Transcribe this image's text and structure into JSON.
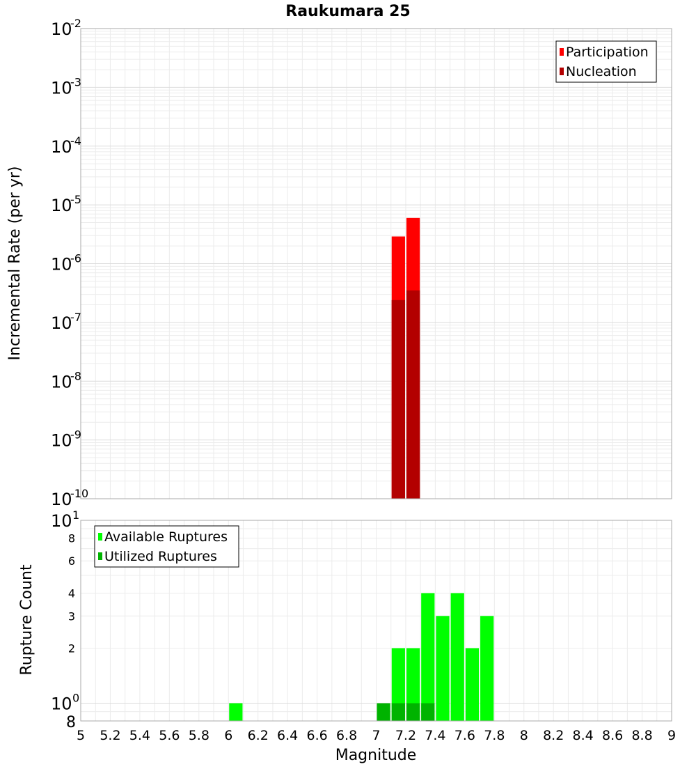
{
  "chart_data": [
    {
      "type": "bar",
      "title": "Raukumara 25",
      "xlabel": "",
      "ylabel": "Incremental Rate (per yr)",
      "xlim": [
        5,
        9
      ],
      "ylim": [
        1e-10,
        0.01
      ],
      "y_scale": "log",
      "bin_width": 0.1,
      "grid": true,
      "legend_position": "top-right",
      "y_tick_exponents": [
        "-2",
        "-3",
        "-4",
        "-5",
        "-6",
        "-7",
        "-8",
        "-9",
        "-10"
      ],
      "series": [
        {
          "name": "Participation",
          "color": "#ff0000",
          "points": [
            {
              "x": 7.15,
              "y": 2.9e-06
            },
            {
              "x": 7.25,
              "y": 6e-06
            }
          ]
        },
        {
          "name": "Nucleation",
          "color": "#b30000",
          "points": [
            {
              "x": 7.15,
              "y": 2.4e-07
            },
            {
              "x": 7.25,
              "y": 3.5e-07
            }
          ]
        }
      ]
    },
    {
      "type": "bar",
      "title": "",
      "xlabel": "Magnitude",
      "ylabel": "Rupture Count",
      "xlim": [
        5,
        9
      ],
      "ylim": [
        0.8,
        10
      ],
      "y_scale": "log",
      "bin_width": 0.1,
      "grid": true,
      "legend_position": "top-left",
      "x_tick_labels": [
        "5",
        "5.2",
        "5.4",
        "5.6",
        "5.8",
        "6",
        "6.2",
        "6.4",
        "6.6",
        "6.8",
        "7",
        "7.2",
        "7.4",
        "7.6",
        "7.8",
        "8",
        "8.2",
        "8.4",
        "8.6",
        "8.8",
        "9"
      ],
      "y_tick_labels": [
        {
          "value": 2,
          "text": "2"
        },
        {
          "value": 3,
          "text": "3"
        },
        {
          "value": 4,
          "text": "4"
        },
        {
          "value": 6,
          "text": "6"
        },
        {
          "value": 8,
          "text": "8"
        }
      ],
      "y_power_ticks": [
        {
          "value": 1,
          "exponent": "0"
        },
        {
          "value": 10,
          "exponent": "1"
        }
      ],
      "y_bottom_label": "8",
      "series": [
        {
          "name": "Available Ruptures",
          "color": "#00ff00",
          "points": [
            {
              "x": 6.05,
              "y": 1
            },
            {
              "x": 7.15,
              "y": 2
            },
            {
              "x": 7.25,
              "y": 2
            },
            {
              "x": 7.35,
              "y": 4
            },
            {
              "x": 7.45,
              "y": 3
            },
            {
              "x": 7.55,
              "y": 4
            },
            {
              "x": 7.65,
              "y": 2
            },
            {
              "x": 7.75,
              "y": 3
            }
          ]
        },
        {
          "name": "Utilized Ruptures",
          "color": "#00b300",
          "points": [
            {
              "x": 7.05,
              "y": 1
            },
            {
              "x": 7.15,
              "y": 1
            },
            {
              "x": 7.25,
              "y": 1
            },
            {
              "x": 7.35,
              "y": 1
            }
          ]
        }
      ]
    }
  ]
}
